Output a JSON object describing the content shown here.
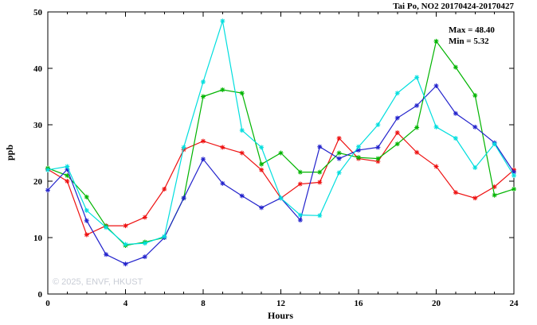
{
  "title": "Tai Po, NO2 20170424-20170427",
  "annotations": {
    "max_label": "Max = 48.40",
    "min_label": "Min =  5.32"
  },
  "watermark": "© 2025, ENVF, HKUST",
  "chart_data": {
    "type": "line",
    "title": "Tai Po, NO2 20170424-20170427",
    "xlabel": "Hours",
    "ylabel": "ppb",
    "xlim": [
      0,
      24
    ],
    "ylim": [
      0,
      50
    ],
    "xticks": [
      0,
      4,
      8,
      12,
      16,
      20,
      24
    ],
    "yticks": [
      0,
      10,
      20,
      30,
      40,
      50
    ],
    "grid": false,
    "legend": "none",
    "marker": "asterisk",
    "max_value": 48.4,
    "min_value": 5.32,
    "x": [
      0,
      1,
      2,
      3,
      4,
      5,
      6,
      7,
      8,
      9,
      10,
      11,
      12,
      13,
      14,
      15,
      16,
      17,
      18,
      19,
      20,
      21,
      22,
      23,
      24
    ],
    "series": [
      {
        "name": "red",
        "color": "#ee1111",
        "values": [
          22.1,
          20.0,
          10.5,
          12.1,
          12.1,
          13.6,
          18.6,
          25.6,
          27.1,
          26.0,
          25.0,
          22.0,
          17.0,
          19.5,
          19.8,
          27.6,
          24.0,
          23.5,
          28.6,
          25.1,
          22.6,
          18.0,
          17.0,
          19.0,
          22.0
        ]
      },
      {
        "name": "green",
        "color": "#00b400",
        "values": [
          22.3,
          21.0,
          17.2,
          12.0,
          8.6,
          9.2,
          10.0,
          17.0,
          35.0,
          36.2,
          35.6,
          23.0,
          25.0,
          21.6,
          21.6,
          25.0,
          24.2,
          24.0,
          26.6,
          29.5,
          44.8,
          40.2,
          35.2,
          17.5,
          18.6
        ]
      },
      {
        "name": "blue",
        "color": "#2222cc",
        "values": [
          18.4,
          22.1,
          13.0,
          7.0,
          5.32,
          6.6,
          10.0,
          17.0,
          23.9,
          19.6,
          17.4,
          15.3,
          17.0,
          13.1,
          26.1,
          24.0,
          25.5,
          26.0,
          31.2,
          33.4,
          36.9,
          32.0,
          29.6,
          26.8,
          21.6
        ]
      },
      {
        "name": "cyan",
        "color": "#00dede",
        "values": [
          22.0,
          22.6,
          14.8,
          11.8,
          8.8,
          9.0,
          10.2,
          26.0,
          37.6,
          48.4,
          29.0,
          26.0,
          17.0,
          14.0,
          13.9,
          21.5,
          26.1,
          30.0,
          35.6,
          38.4,
          29.6,
          27.6,
          22.4,
          26.6,
          21.0
        ]
      }
    ]
  }
}
